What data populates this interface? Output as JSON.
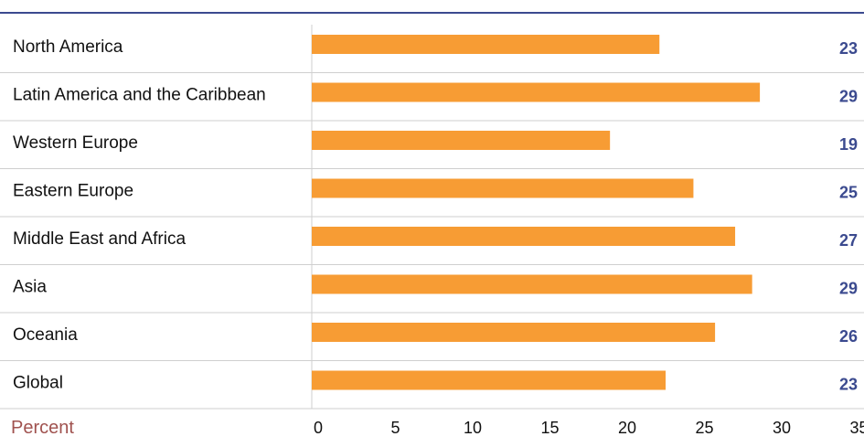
{
  "chart_data": {
    "type": "bar",
    "orientation": "horizontal",
    "categories": [
      "North America",
      "Latin America and the Caribbean",
      "Western Europe",
      "Eastern Europe",
      "Middle East and Africa",
      "Asia",
      "Oceania",
      "Global"
    ],
    "values": [
      23,
      29,
      19,
      25,
      27,
      29,
      26,
      23
    ],
    "bar_values": [
      22.5,
      29.0,
      19.3,
      24.7,
      27.4,
      28.5,
      26.1,
      22.9
    ],
    "value_labels": [
      "23",
      "29",
      "19",
      "25",
      "27",
      "29",
      "26",
      "23"
    ],
    "xlabel": "Percent",
    "xlim": [
      0,
      35
    ],
    "xticks": [
      "0",
      "5",
      "10",
      "15",
      "20",
      "25",
      "30",
      "35"
    ],
    "grid": true,
    "legend": "none",
    "colors": {
      "bar": "#f79c34",
      "value_label": "#3b4a8f",
      "top_rule": "#3b4a8f",
      "axis_title": "#a0524f",
      "gridline": "#cfcfcf"
    }
  }
}
